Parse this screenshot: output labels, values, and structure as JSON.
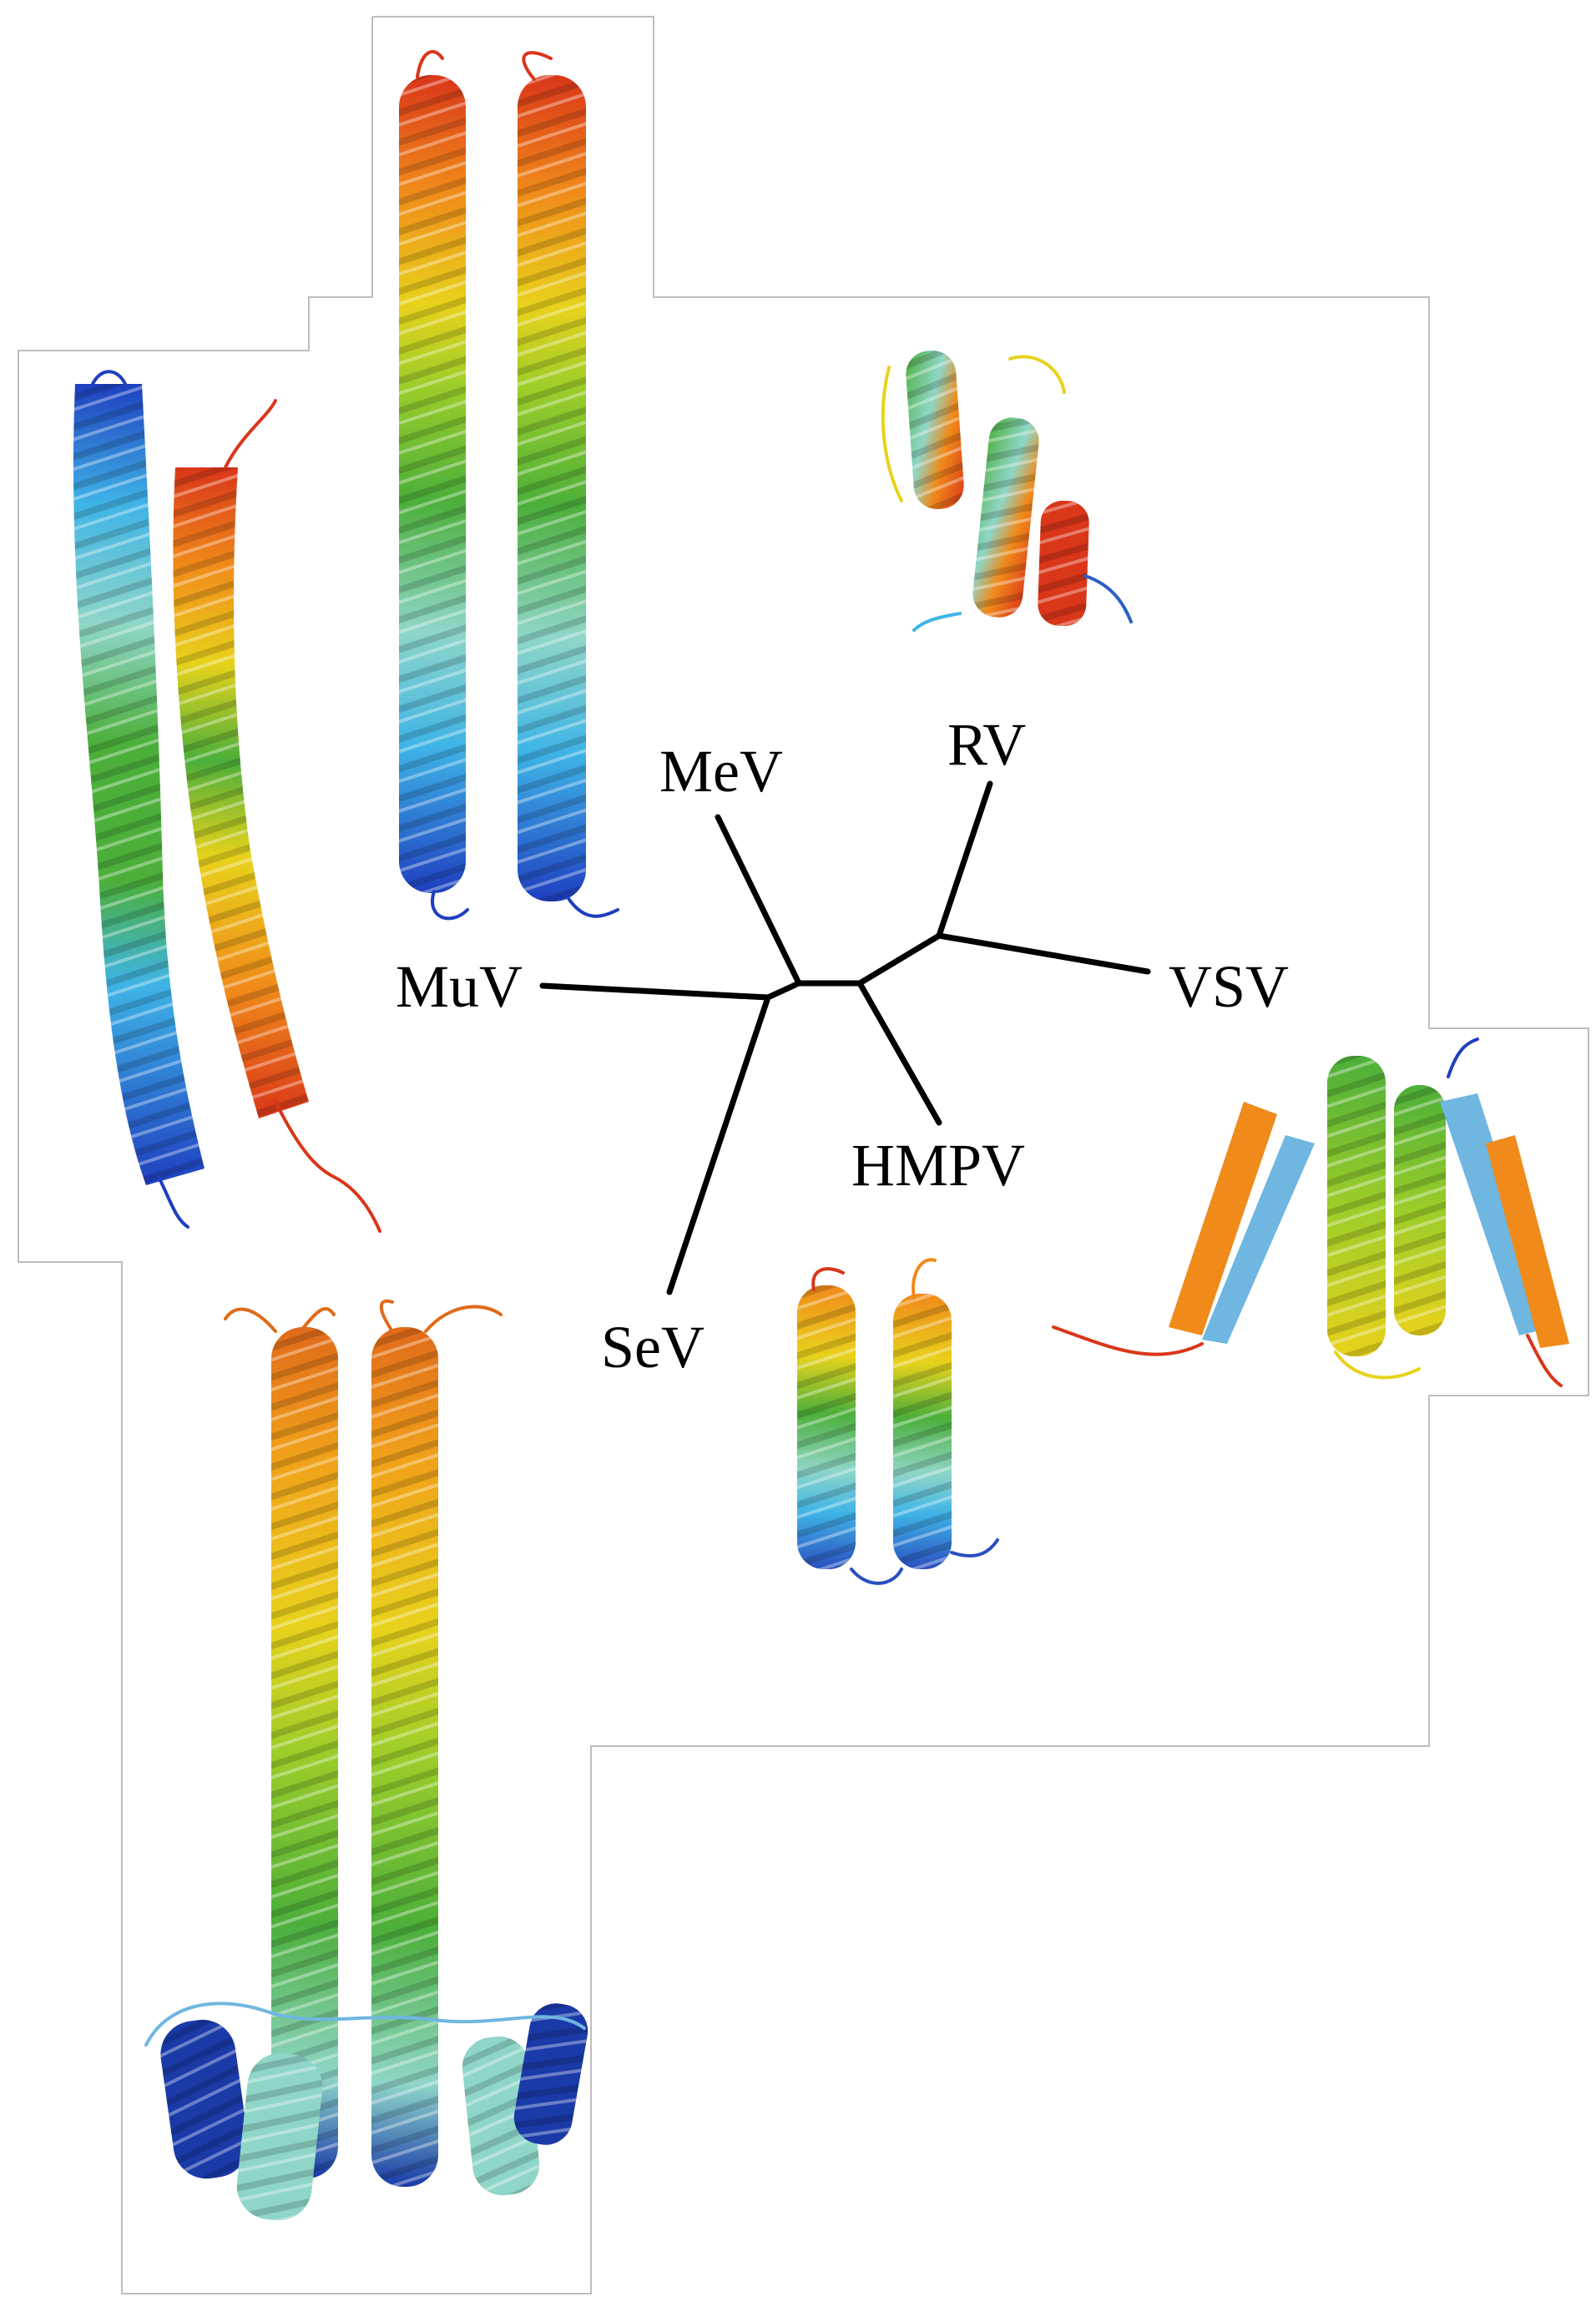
{
  "tree": {
    "labels": {
      "mev": "MeV",
      "rv": "RV",
      "muv": "MuV",
      "vsv": "VSV",
      "hmpv": "HMPV",
      "sev": "SeV"
    }
  },
  "structures": [
    {
      "virus": "MeV",
      "fold": "coiled-coil dimer",
      "colors": [
        "#1f3fbf",
        "#3fb4e6",
        "#8fd6c8",
        "#4caf3a",
        "#e8d21c",
        "#f08a1a",
        "#d9361a"
      ]
    },
    {
      "virus": "MuV",
      "fold": "coiled-coil dimer",
      "colors": [
        "#1f3fbf",
        "#3fb4e6",
        "#8fd6c8",
        "#4caf3a",
        "#e8d21c",
        "#f08a1a",
        "#d9361a"
      ]
    },
    {
      "virus": "RV",
      "fold": "helical bundle",
      "colors": [
        "#2b5fc4",
        "#8fd6c8",
        "#4caf3a",
        "#e8d21c",
        "#f08a1a",
        "#d9361a"
      ]
    },
    {
      "virus": "VSV",
      "fold": "helices with beta strands",
      "colors": [
        "#1f3fbf",
        "#6fb6e0",
        "#4caf3a",
        "#e8d21c",
        "#f08a1a",
        "#d9361a"
      ]
    },
    {
      "virus": "HMPV",
      "fold": "short coiled-coil dimer",
      "colors": [
        "#2b4fc0",
        "#3fb4e6",
        "#8fd6c8",
        "#4caf3a",
        "#e8d21c",
        "#f08a1a"
      ]
    },
    {
      "virus": "SeV",
      "fold": "coiled-coil dimer with basal helices",
      "colors": [
        "#1a3aa8",
        "#8fd6c8",
        "#4caf3a",
        "#e8d21c",
        "#f08a1a",
        "#d9361a"
      ]
    }
  ]
}
